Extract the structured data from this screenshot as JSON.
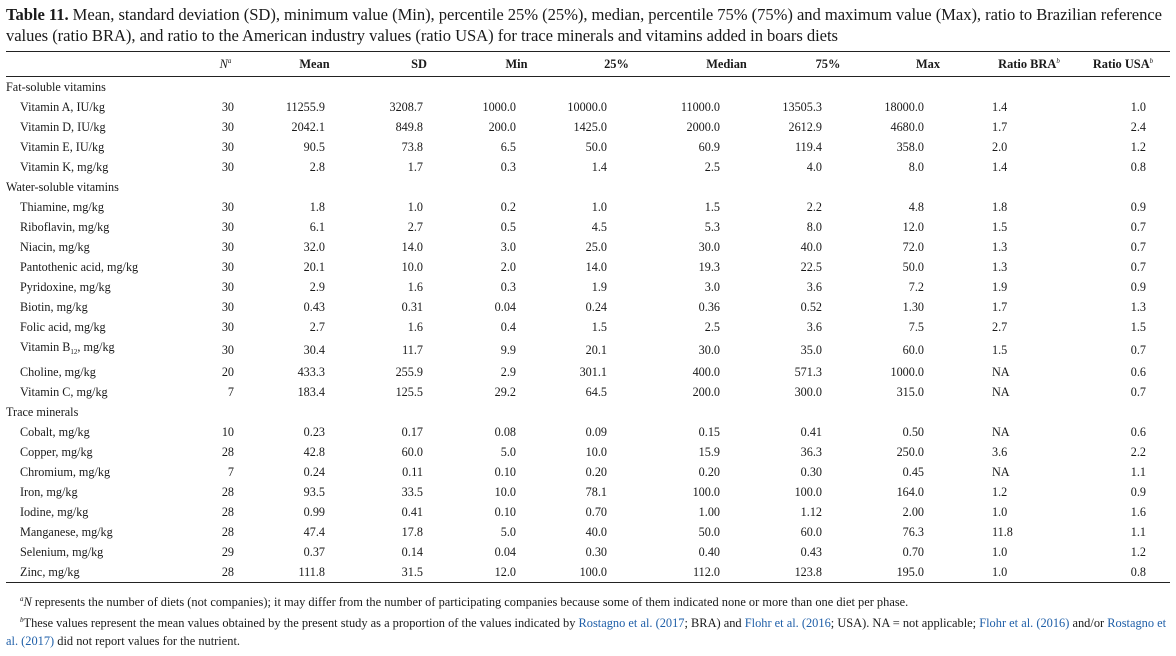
{
  "caption": {
    "label": "Table 11.",
    "text": " Mean, standard deviation (SD), minimum value (Min), percentile 25% (25%), median, percentile 75% (75%) and maximum value (Max), ratio to Brazilian reference values (ratio BRA), and ratio to the American industry values (ratio USA) for trace minerals and vitamins added in boars diets"
  },
  "headers": {
    "name": "",
    "n": "N",
    "n_sup": "a",
    "mean": "Mean",
    "sd": "SD",
    "min": "Min",
    "p25": "25%",
    "median": "Median",
    "p75": "75%",
    "max": "Max",
    "ratio_bra": "Ratio BRA",
    "ratio_bra_sup": "b",
    "ratio_usa": "Ratio USA",
    "ratio_usa_sup": "b"
  },
  "sections": [
    {
      "title": "Fat-soluble vitamins",
      "rows": [
        {
          "name": "Vitamin A, IU/kg",
          "n": "30",
          "mean": "11255.9",
          "sd": "3208.7",
          "min": "1000.0",
          "p25": "10000.0",
          "median": "11000.0",
          "p75": "13505.3",
          "max": "18000.0",
          "bra": "1.4",
          "usa": "1.0"
        },
        {
          "name": "Vitamin D, IU/kg",
          "n": "30",
          "mean": "2042.1",
          "sd": "849.8",
          "min": "200.0",
          "p25": "1425.0",
          "median": "2000.0",
          "p75": "2612.9",
          "max": "4680.0",
          "bra": "1.7",
          "usa": "2.4"
        },
        {
          "name": "Vitamin E, IU/kg",
          "n": "30",
          "mean": "90.5",
          "sd": "73.8",
          "min": "6.5",
          "p25": "50.0",
          "median": "60.9",
          "p75": "119.4",
          "max": "358.0",
          "bra": "2.0",
          "usa": "1.2"
        },
        {
          "name": "Vitamin K, mg/kg",
          "n": "30",
          "mean": "2.8",
          "sd": "1.7",
          "min": "0.3",
          "p25": "1.4",
          "median": "2.5",
          "p75": "4.0",
          "max": "8.0",
          "bra": "1.4",
          "usa": "0.8"
        }
      ]
    },
    {
      "title": "Water-soluble vitamins",
      "rows": [
        {
          "name": "Thiamine, mg/kg",
          "n": "30",
          "mean": "1.8",
          "sd": "1.0",
          "min": "0.2",
          "p25": "1.0",
          "median": "1.5",
          "p75": "2.2",
          "max": "4.8",
          "bra": "1.8",
          "usa": "0.9"
        },
        {
          "name": "Riboflavin, mg/kg",
          "n": "30",
          "mean": "6.1",
          "sd": "2.7",
          "min": "0.5",
          "p25": "4.5",
          "median": "5.3",
          "p75": "8.0",
          "max": "12.0",
          "bra": "1.5",
          "usa": "0.7"
        },
        {
          "name": "Niacin, mg/kg",
          "n": "30",
          "mean": "32.0",
          "sd": "14.0",
          "min": "3.0",
          "p25": "25.0",
          "median": "30.0",
          "p75": "40.0",
          "max": "72.0",
          "bra": "1.3",
          "usa": "0.7"
        },
        {
          "name": "Pantothenic acid, mg/kg",
          "n": "30",
          "mean": "20.1",
          "sd": "10.0",
          "min": "2.0",
          "p25": "14.0",
          "median": "19.3",
          "p75": "22.5",
          "max": "50.0",
          "bra": "1.3",
          "usa": "0.7"
        },
        {
          "name": "Pyridoxine, mg/kg",
          "n": "30",
          "mean": "2.9",
          "sd": "1.6",
          "min": "0.3",
          "p25": "1.9",
          "median": "3.0",
          "p75": "3.6",
          "max": "7.2",
          "bra": "1.9",
          "usa": "0.9"
        },
        {
          "name": "Biotin, mg/kg",
          "n": "30",
          "mean": "0.43",
          "sd": "0.31",
          "min": "0.04",
          "p25": "0.24",
          "median": "0.36",
          "p75": "0.52",
          "max": "1.30",
          "bra": "1.7",
          "usa": "1.3"
        },
        {
          "name": "Folic acid, mg/kg",
          "n": "30",
          "mean": "2.7",
          "sd": "1.6",
          "min": "0.4",
          "p25": "1.5",
          "median": "2.5",
          "p75": "3.6",
          "max": "7.5",
          "bra": "2.7",
          "usa": "1.5"
        },
        {
          "name": "Vitamin B",
          "name_sub": "12",
          "name_after": ", mg/kg",
          "n": "30",
          "mean": "30.4",
          "sd": "11.7",
          "min": "9.9",
          "p25": "20.1",
          "median": "30.0",
          "p75": "35.0",
          "max": "60.0",
          "bra": "1.5",
          "usa": "0.7"
        },
        {
          "name": "Choline, mg/kg",
          "n": "20",
          "mean": "433.3",
          "sd": "255.9",
          "min": "2.9",
          "p25": "301.1",
          "median": "400.0",
          "p75": "571.3",
          "max": "1000.0",
          "bra": "NA",
          "usa": "0.6"
        },
        {
          "name": "Vitamin C, mg/kg",
          "n": "7",
          "mean": "183.4",
          "sd": "125.5",
          "min": "29.2",
          "p25": "64.5",
          "median": "200.0",
          "p75": "300.0",
          "max": "315.0",
          "bra": "NA",
          "usa": "0.7"
        }
      ]
    },
    {
      "title": "Trace minerals",
      "rows": [
        {
          "name": "Cobalt, mg/kg",
          "n": "10",
          "mean": "0.23",
          "sd": "0.17",
          "min": "0.08",
          "p25": "0.09",
          "median": "0.15",
          "p75": "0.41",
          "max": "0.50",
          "bra": "NA",
          "usa": "0.6"
        },
        {
          "name": "Copper, mg/kg",
          "n": "28",
          "mean": "42.8",
          "sd": "60.0",
          "min": "5.0",
          "p25": "10.0",
          "median": "15.9",
          "p75": "36.3",
          "max": "250.0",
          "bra": "3.6",
          "usa": "2.2"
        },
        {
          "name": "Chromium, mg/kg",
          "n": "7",
          "mean": "0.24",
          "sd": "0.11",
          "min": "0.10",
          "p25": "0.20",
          "median": "0.20",
          "p75": "0.30",
          "max": "0.45",
          "bra": "NA",
          "usa": "1.1"
        },
        {
          "name": "Iron, mg/kg",
          "n": "28",
          "mean": "93.5",
          "sd": "33.5",
          "min": "10.0",
          "p25": "78.1",
          "median": "100.0",
          "p75": "100.0",
          "max": "164.0",
          "bra": "1.2",
          "usa": "0.9"
        },
        {
          "name": "Iodine, mg/kg",
          "n": "28",
          "mean": "0.99",
          "sd": "0.41",
          "min": "0.10",
          "p25": "0.70",
          "median": "1.00",
          "p75": "1.12",
          "max": "2.00",
          "bra": "1.0",
          "usa": "1.6"
        },
        {
          "name": "Manganese, mg/kg",
          "n": "28",
          "mean": "47.4",
          "sd": "17.8",
          "min": "5.0",
          "p25": "40.0",
          "median": "50.0",
          "p75": "60.0",
          "max": "76.3",
          "bra": "11.8",
          "usa": "1.1"
        },
        {
          "name": "Selenium, mg/kg",
          "n": "29",
          "mean": "0.37",
          "sd": "0.14",
          "min": "0.04",
          "p25": "0.30",
          "median": "0.40",
          "p75": "0.43",
          "max": "0.70",
          "bra": "1.0",
          "usa": "1.2"
        },
        {
          "name": "Zinc, mg/kg",
          "n": "28",
          "mean": "111.8",
          "sd": "31.5",
          "min": "12.0",
          "p25": "100.0",
          "median": "112.0",
          "p75": "123.8",
          "max": "195.0",
          "bra": "1.0",
          "usa": "0.8"
        }
      ]
    }
  ],
  "footnotes": {
    "a": {
      "sup": "a",
      "italic": "N",
      "text": " represents the number of diets (not companies); it may differ from the number of participating companies because some of them indicated none or more than one diet per phase."
    },
    "b": {
      "sup": "b",
      "part1": "These values represent the mean values obtained by the present study as a proportion of the values indicated by ",
      "ref1": "Rostagno et al. (2017",
      "part2": "; BRA) and ",
      "ref2": "Flohr et al. (2016",
      "part3": "; USA). NA = not applicable; ",
      "ref3": "Flohr et al. (2016)",
      "part4": " and/or ",
      "ref4": "Rostagno et al. (2017)",
      "part5": " did not report values for the nutrient."
    }
  },
  "colors": {
    "link": "#1f5fa8",
    "text": "#1a1a1a",
    "rule": "#222222"
  }
}
